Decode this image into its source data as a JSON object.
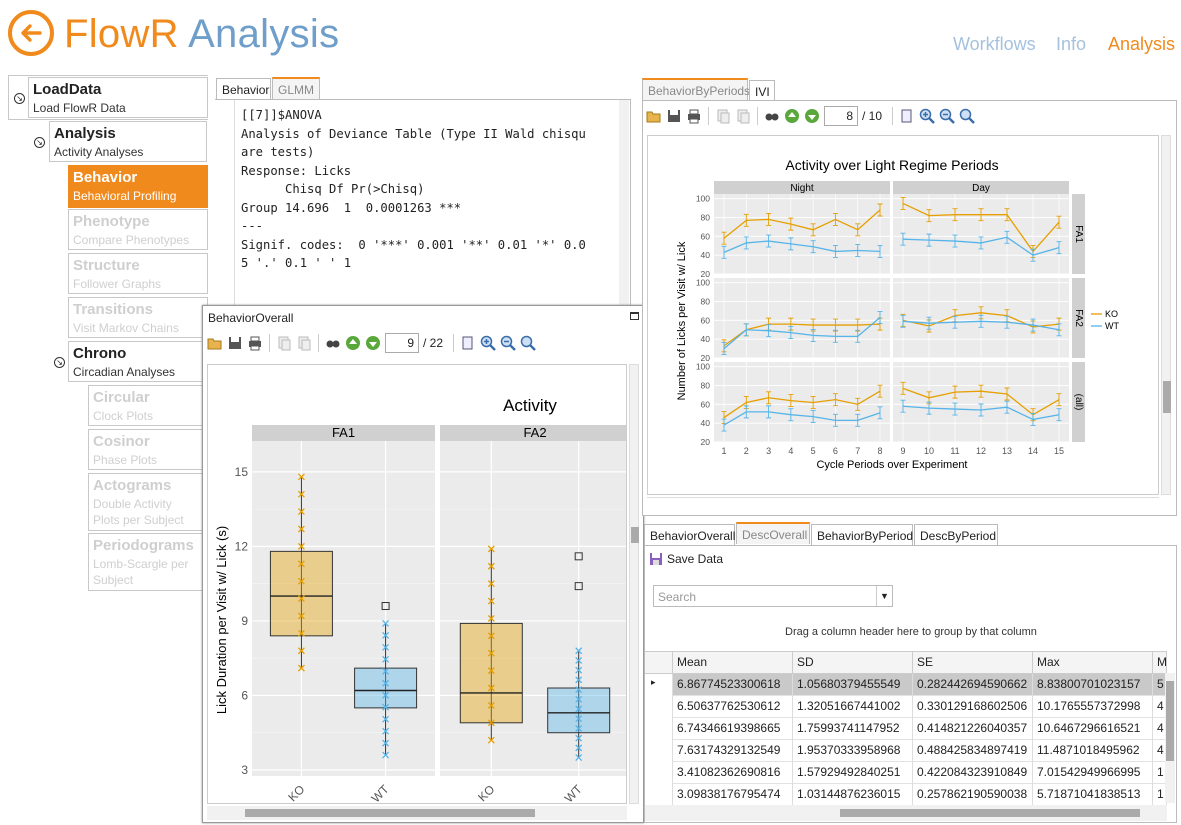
{
  "header": {
    "title_part1": "FlowR",
    "title_part2": "Analysis",
    "nav": [
      "Workflows",
      "Info",
      "Analysis"
    ]
  },
  "sidebar": {
    "items": [
      {
        "label": "LoadData",
        "sub": "Load FlowR Data",
        "state": "normal"
      },
      {
        "label": "Analysis",
        "sub": "Activity Analyses",
        "state": "normal"
      },
      {
        "label": "Behavior",
        "sub": "Behavioral Profiling",
        "state": "selected"
      },
      {
        "label": "Phenotype",
        "sub": "Compare Phenotypes",
        "state": "disabled"
      },
      {
        "label": "Structure",
        "sub": "Follower Graphs",
        "state": "disabled"
      },
      {
        "label": "Transitions",
        "sub": "Visit Markov Chains",
        "state": "disabled"
      },
      {
        "label": "Chrono",
        "sub": "Circadian Analyses",
        "state": "normal"
      },
      {
        "label": "Circular",
        "sub": "Clock Plots",
        "state": "disabled"
      },
      {
        "label": "Cosinor",
        "sub": "Phase Plots",
        "state": "disabled"
      },
      {
        "label": "Actograms",
        "sub": "Double Activity Plots per Subject",
        "state": "disabled"
      },
      {
        "label": "Periodograms",
        "sub": "Lomb-Scargle per Subject",
        "state": "disabled"
      }
    ]
  },
  "console_panel": {
    "tabs": [
      "Behavior",
      "GLMM"
    ],
    "lines": [
      "[[7]]$ANOVA",
      "Analysis of Deviance Table (Type II Wald chisqu",
      "are tests)",
      "",
      "Response: Licks",
      "      Chisq Df Pr(>Chisq)",
      "Group 14.696  1  0.0001263 ***",
      "---",
      "Signif. codes:  0 '***' 0.001 '**' 0.01 '*' 0.0",
      "5 '.' 0.1 ' ' 1"
    ]
  },
  "overall_window": {
    "title": "BehaviorOverall",
    "page": "9",
    "total": "/ 22"
  },
  "periods_panel": {
    "tabs": [
      "BehaviorByPeriods",
      "IVI"
    ],
    "page": "8",
    "total": "/ 10"
  },
  "table_panel": {
    "tabs": [
      "BehaviorOverall",
      "DescOverall",
      "BehaviorByPeriod",
      "DescByPeriod"
    ],
    "save_label": "Save Data",
    "search_placeholder": "Search",
    "group_hint": "Drag a column header here to group by that column",
    "columns": [
      "Mean",
      "SD",
      "SE",
      "Max",
      "M"
    ],
    "rows": [
      [
        "6.86774523300618",
        "1.05680379455549",
        "0.282442694590662",
        "8.83800701023157",
        "5"
      ],
      [
        "6.50637762530612",
        "1.32051667441002",
        "0.330129168602506",
        "10.1765557372998",
        "4"
      ],
      [
        "6.74346619398665",
        "1.75993741147952",
        "0.414821226040357",
        "10.6467296616521",
        "4"
      ],
      [
        "7.63174329132549",
        "1.95370333958968",
        "0.488425834897419",
        "11.4871018495962",
        "4"
      ],
      [
        "3.41082362690816",
        "1.57929492840251",
        "0.422084323910849",
        "7.01542949966995",
        "1"
      ],
      [
        "3.09838176795474",
        "1.03144876236015",
        "0.257862190590038",
        "5.71871041838513",
        "1"
      ]
    ]
  },
  "colors": {
    "accent": "#f18a1c",
    "ko": "#e69f00",
    "wt": "#56b4e9",
    "nav_blue": "#a5c1dd"
  },
  "chart_data": [
    {
      "type": "box",
      "title": "Activity",
      "ylabel": "Lick Duration per Visit w/ Lick (s)",
      "facets": [
        "FA1",
        "FA2"
      ],
      "categories": [
        "KO",
        "WT"
      ],
      "ylim": [
        3,
        16
      ],
      "yticks": [
        3,
        6,
        9,
        12,
        15
      ],
      "series": [
        {
          "facet": "FA1",
          "group": "KO",
          "q1": 8.4,
          "median": 10.0,
          "q3": 11.8,
          "min": 7.1,
          "max": 14.8,
          "outliers": []
        },
        {
          "facet": "FA1",
          "group": "WT",
          "q1": 5.5,
          "median": 6.2,
          "q3": 7.1,
          "min": 3.6,
          "max": 8.9,
          "outliers": [
            9.6
          ]
        },
        {
          "facet": "FA2",
          "group": "KO",
          "q1": 4.9,
          "median": 6.1,
          "q3": 8.9,
          "min": 4.2,
          "max": 11.9,
          "outliers": []
        },
        {
          "facet": "FA2",
          "group": "WT",
          "q1": 4.5,
          "median": 5.3,
          "q3": 6.3,
          "min": 3.5,
          "max": 7.8,
          "outliers": [
            10.4,
            11.6
          ]
        }
      ]
    },
    {
      "type": "line",
      "title": "Activity over Light Regime Periods",
      "xlabel": "Cycle Periods over Experiment",
      "ylabel": "Number of Licks per Visit w/ Lick",
      "col_facets": [
        "Night",
        "Day"
      ],
      "row_facets": [
        "FA1",
        "FA2",
        "(all)"
      ],
      "ylim": [
        20,
        105
      ],
      "yticks": [
        20,
        40,
        60,
        80,
        100
      ],
      "x": [
        1,
        2,
        3,
        4,
        5,
        6,
        7,
        8,
        9,
        10,
        11,
        12,
        13,
        14,
        15
      ],
      "legend": [
        "KO",
        "WT"
      ],
      "legend_position": "right",
      "panels": [
        {
          "row": "FA1",
          "col": "Night",
          "KO": [
            58,
            77,
            78,
            73,
            67,
            78,
            67,
            88
          ],
          "WT": [
            43,
            53,
            55,
            52,
            49,
            44,
            45,
            44
          ]
        },
        {
          "row": "FA1",
          "col": "Day",
          "KO": [
            95,
            82,
            83,
            83,
            83,
            44,
            75
          ],
          "WT": [
            57,
            56,
            55,
            53,
            59,
            40,
            48
          ]
        },
        {
          "row": "FA2",
          "col": "Night",
          "KO": [
            33,
            50,
            56,
            56,
            55,
            55,
            55,
            56
          ],
          "WT": [
            30,
            50,
            49,
            47,
            44,
            43,
            43,
            63
          ]
        },
        {
          "row": "FA2",
          "col": "Day",
          "KO": [
            60,
            54,
            65,
            68,
            65,
            53,
            56
          ],
          "WT": [
            59,
            57,
            58,
            59,
            58,
            55,
            50
          ]
        },
        {
          "row": "(all)",
          "col": "Night",
          "KO": [
            46,
            62,
            67,
            64,
            62,
            65,
            60,
            74
          ],
          "WT": [
            38,
            52,
            52,
            49,
            47,
            43,
            43,
            51
          ]
        },
        {
          "row": "(all)",
          "col": "Day",
          "KO": [
            77,
            67,
            73,
            74,
            71,
            49,
            65
          ],
          "WT": [
            58,
            56,
            55,
            54,
            57,
            44,
            49
          ]
        }
      ]
    }
  ]
}
